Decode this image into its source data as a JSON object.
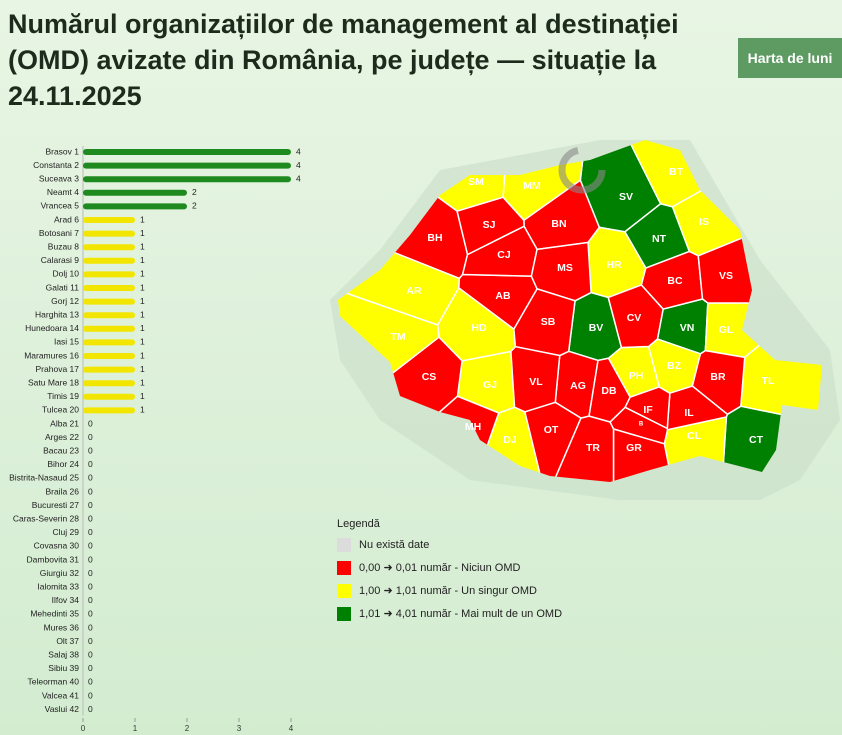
{
  "header": {
    "title": [
      "Numărul organizațiilor de management al destinației",
      "(OMD) avizate din România, pe județe — situație la",
      "24.11.2025"
    ],
    "button": "Harta de luni"
  },
  "chart_data": {
    "type": "bar",
    "orientation": "horizontal",
    "categories": [
      "Brasov 1",
      "Constanta 2",
      "Suceava 3",
      "Neamt 4",
      "Vrancea 5",
      "Arad 6",
      "Botosani 7",
      "Buzau 8",
      "Calarasi 9",
      "Dolj 10",
      "Galati 11",
      "Gorj 12",
      "Harghita 13",
      "Hunedoara 14",
      "Iasi 15",
      "Maramures 16",
      "Prahova 17",
      "Satu Mare 18",
      "Timis 19",
      "Tulcea 20",
      "Alba 21",
      "Arges 22",
      "Bacau 23",
      "Bihor 24",
      "Bistrita-Nasaud 25",
      "Braila 26",
      "Bucuresti 27",
      "Caras-Severin 28",
      "Cluj 29",
      "Covasna 30",
      "Dambovita 31",
      "Giurgiu 32",
      "Ialomita 33",
      "Ilfov 34",
      "Mehedinti 35",
      "Mures 36",
      "Olt 37",
      "Salaj 38",
      "Sibiu 39",
      "Teleorman 40",
      "Valcea 41",
      "Vaslui 42"
    ],
    "values": [
      4,
      4,
      4,
      2,
      2,
      1,
      1,
      1,
      1,
      1,
      1,
      1,
      1,
      1,
      1,
      1,
      1,
      1,
      1,
      1,
      0,
      0,
      0,
      0,
      0,
      0,
      0,
      0,
      0,
      0,
      0,
      0,
      0,
      0,
      0,
      0,
      0,
      0,
      0,
      0,
      0,
      0
    ],
    "xlim": [
      0,
      4
    ],
    "xticks": [
      0,
      1,
      2,
      3,
      4
    ]
  },
  "map": {
    "labels": [
      "BV",
      "CT",
      "SV",
      "NT",
      "VN",
      "AR",
      "BT",
      "BZ",
      "CL",
      "DJ",
      "GL",
      "GJ",
      "HR",
      "HD",
      "IS",
      "MM",
      "PH",
      "SM",
      "TM",
      "TL",
      "AB",
      "AG",
      "BC",
      "BH",
      "BN",
      "BR",
      "B",
      "CS",
      "CJ",
      "CV",
      "DB",
      "GR",
      "IL",
      "IF",
      "MH",
      "MS",
      "OT",
      "SJ",
      "SB",
      "TR",
      "VL",
      "VS"
    ]
  },
  "legend": {
    "title": "Legendă",
    "items": [
      {
        "label": "Nu există date",
        "color": "#dcdcdc"
      },
      {
        "label": "0,00 ➜ 0,01 număr - Niciun OMD",
        "color": "#ff0000",
        "range": [
          0,
          0.01
        ]
      },
      {
        "label": "1,00 ➜ 1,01 număr - Un singur OMD",
        "color": "#ffff00",
        "range": [
          1,
          1.01
        ]
      },
      {
        "label": "1,01 ➜ 4,01 număr - Mai mult de un OMD",
        "color": "#008000",
        "range": [
          1.01,
          4.01
        ]
      }
    ]
  }
}
